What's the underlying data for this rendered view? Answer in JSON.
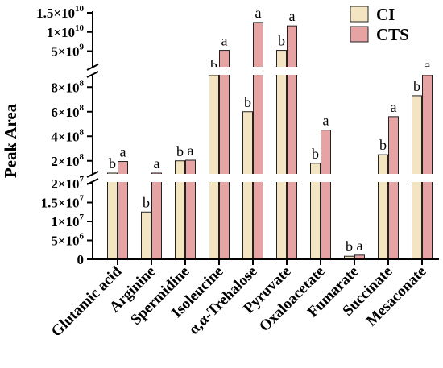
{
  "chart_data": {
    "type": "bar",
    "ylabel": "Peak Area",
    "y_scale": "broken",
    "y_segments": [
      {
        "range": [
          0,
          20000000
        ],
        "ticks": [
          {
            "value": 0,
            "mant": "0",
            "exp": ""
          },
          {
            "value": 5000000,
            "mant": "5×10",
            "exp": "6"
          },
          {
            "value": 10000000,
            "mant": "1×10",
            "exp": "7"
          },
          {
            "value": 15000000,
            "mant": "1.5×10",
            "exp": "7"
          },
          {
            "value": 20000000,
            "mant": "2×10",
            "exp": "7"
          }
        ]
      },
      {
        "range": [
          100000000,
          900000000
        ],
        "ticks": [
          {
            "value": 200000000,
            "mant": "2×10",
            "exp": "8"
          },
          {
            "value": 400000000,
            "mant": "4×10",
            "exp": "8"
          },
          {
            "value": 600000000,
            "mant": "6×10",
            "exp": "8"
          },
          {
            "value": 800000000,
            "mant": "8×10",
            "exp": "8"
          }
        ]
      },
      {
        "range": [
          900000000,
          15000000000
        ],
        "ticks": [
          {
            "value": 5000000000,
            "mant": "5×10",
            "exp": "9"
          },
          {
            "value": 10000000000,
            "mant": "1×10",
            "exp": "10"
          },
          {
            "value": 15000000000,
            "mant": "1.5×10",
            "exp": "10"
          }
        ]
      }
    ],
    "categories": [
      "Glutamic acid",
      "Arginine",
      "Spermidine",
      "Isoleucine",
      "α,α-Trehalose",
      "Pyruvate",
      "Oxaloacetate",
      "Fumarate",
      "Succinate",
      "Mesaconate"
    ],
    "series": [
      {
        "name": "CI",
        "color": "#f3e4c2",
        "values": [
          100000000,
          12500000,
          200000000,
          900000000,
          600000000,
          5200000000,
          180000000,
          800000,
          250000000,
          730000000
        ],
        "labels": [
          "b",
          "b",
          "b",
          "b",
          "b",
          "b",
          "b",
          "b",
          "b",
          "b"
        ]
      },
      {
        "name": "CTS",
        "color": "#e5a3a3",
        "values": [
          195000000,
          21000000,
          205000000,
          5200000000,
          12500000000,
          11600000000,
          450000000,
          1100000,
          560000000,
          900000000
        ],
        "labels": [
          "a",
          "a",
          "a",
          "a",
          "a",
          "a",
          "a",
          "a",
          "a",
          "a"
        ]
      }
    ],
    "legend": {
      "position": "top-right",
      "entries": [
        "CI",
        "CTS"
      ]
    }
  }
}
